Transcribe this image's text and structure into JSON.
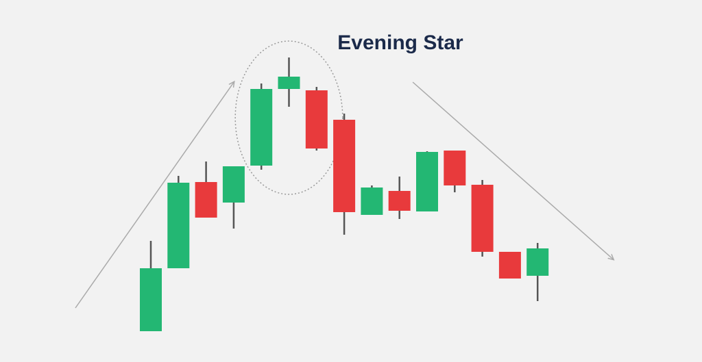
{
  "chart_data": {
    "type": "candlestick",
    "title": "Evening Star",
    "xlabel": "",
    "ylabel": "",
    "grid": false,
    "colors": {
      "background": "#f2f2f2",
      "bullish": "#23b773",
      "bearish": "#e83a3c",
      "wick": "#555555",
      "trend_arrow": "#aaaaaa",
      "highlight_ellipse": "#999999",
      "title": "#1b2a4a"
    },
    "highlight": {
      "label": "",
      "candles": [
        4,
        5,
        6
      ]
    },
    "trends": [
      {
        "direction": "up",
        "from_candle": 0,
        "to_candle": 4
      },
      {
        "direction": "down",
        "from_candle": 7,
        "to_candle": 15
      }
    ],
    "candles": [
      {
        "open": 8,
        "close": 100,
        "high": 140,
        "low": 8,
        "direction": "up"
      },
      {
        "open": 100,
        "close": 225,
        "high": 235,
        "low": 100,
        "direction": "up"
      },
      {
        "open": 226,
        "close": 174,
        "high": 256,
        "low": 174,
        "direction": "down"
      },
      {
        "open": 196,
        "close": 249,
        "high": 249,
        "low": 158,
        "direction": "up"
      },
      {
        "open": 250,
        "close": 362,
        "high": 370,
        "low": 244,
        "direction": "up"
      },
      {
        "open": 362,
        "close": 380,
        "high": 408,
        "low": 336,
        "direction": "up"
      },
      {
        "open": 360,
        "close": 275,
        "high": 365,
        "low": 272,
        "direction": "down"
      },
      {
        "open": 317,
        "close": 182,
        "high": 326,
        "low": 149,
        "direction": "down"
      },
      {
        "open": 178,
        "close": 218,
        "high": 221,
        "low": 178,
        "direction": "up"
      },
      {
        "open": 213,
        "close": 184,
        "high": 234,
        "low": 172,
        "direction": "down"
      },
      {
        "open": 183,
        "close": 270,
        "high": 271,
        "low": 183,
        "direction": "up"
      },
      {
        "open": 272,
        "close": 221,
        "high": 272,
        "low": 211,
        "direction": "down"
      },
      {
        "open": 222,
        "close": 124,
        "high": 229,
        "low": 117,
        "direction": "down"
      },
      {
        "open": 124,
        "close": 85,
        "high": 124,
        "low": 85,
        "direction": "down"
      },
      {
        "open": 89,
        "close": 129,
        "high": 137,
        "low": 52,
        "direction": "up"
      }
    ],
    "ylim": [
      0,
      420
    ]
  }
}
